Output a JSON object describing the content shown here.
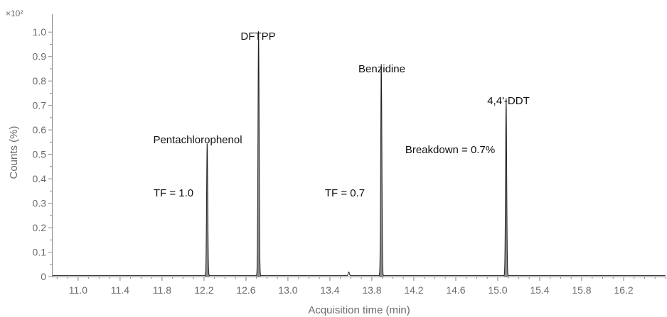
{
  "chart_data": {
    "type": "line",
    "xlabel": "Acquisition time (min)",
    "ylabel": "Counts (%)",
    "y_multiplier": "×10²",
    "xlim": [
      10.75,
      16.6
    ],
    "ylim": [
      0,
      1.05
    ],
    "grid": false,
    "x_ticks": [
      "11.0",
      "11.4",
      "11.8",
      "12.2",
      "12.6",
      "13.0",
      "13.4",
      "13.8",
      "14.2",
      "14.6",
      "15.0",
      "15.4",
      "15.8",
      "16.2"
    ],
    "y_ticks": [
      "0",
      "0.1",
      "0.2",
      "0.3",
      "0.4",
      "0.5",
      "0.6",
      "0.7",
      "0.8",
      "0.9",
      "1.0"
    ],
    "colors": {
      "trace": "#222222",
      "peak_fill": "#8c8c8c",
      "axis": "#8a8a8a"
    },
    "peaks": [
      {
        "name": "Pentachlorophenol",
        "time": 12.23,
        "height": 0.54,
        "note": "TF = 1.0"
      },
      {
        "name": "DFTPP",
        "time": 12.72,
        "height": 1.0
      },
      {
        "name": "",
        "time": 13.58,
        "height": 0.015
      },
      {
        "name": "Benzidine",
        "time": 13.89,
        "height": 0.865,
        "note": "TF = 0.7"
      },
      {
        "name": "4,4'-DDT",
        "time": 15.08,
        "height": 0.725,
        "note": "Breakdown = 0.7%"
      }
    ]
  }
}
